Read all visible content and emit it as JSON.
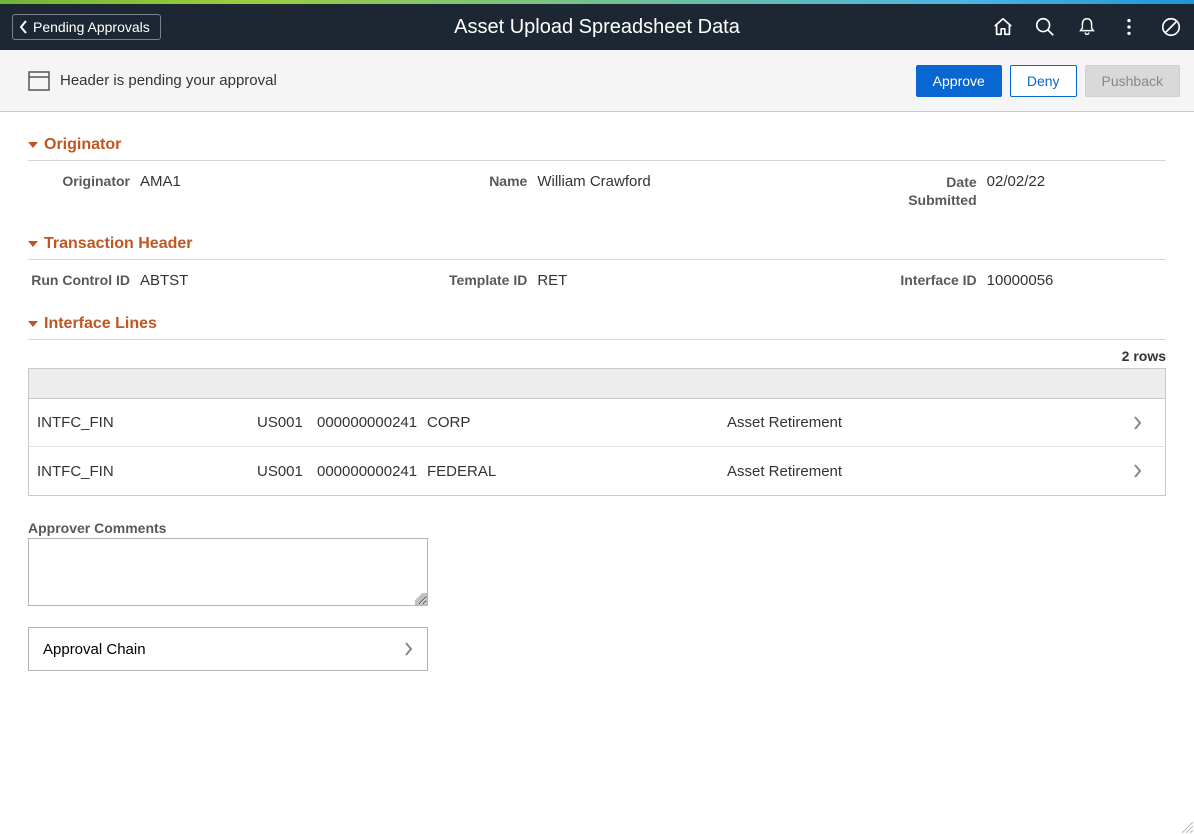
{
  "header": {
    "back_label": "Pending Approvals",
    "title": "Asset Upload Spreadsheet Data"
  },
  "sub_bar": {
    "message": "Header is pending your approval",
    "approve_label": "Approve",
    "deny_label": "Deny",
    "pushback_label": "Pushback"
  },
  "sections": {
    "originator": {
      "title": "Originator",
      "originator_label": "Originator",
      "originator_value": "AMA1",
      "name_label": "Name",
      "name_value": "William Crawford",
      "date_label": "Date Submitted",
      "date_value": "02/02/22"
    },
    "transaction_header": {
      "title": "Transaction Header",
      "run_control_label": "Run Control ID",
      "run_control_value": "ABTST",
      "template_label": "Template ID",
      "template_value": "RET",
      "interface_label": "Interface ID",
      "interface_value": "10000056"
    },
    "interface_lines": {
      "title": "Interface Lines",
      "rows_count": "2 rows",
      "rows": [
        {
          "c1": "INTFC_FIN",
          "c2": "US001",
          "c3": "000000000241",
          "c4": "CORP",
          "c5": "Asset Retirement"
        },
        {
          "c1": "INTFC_FIN",
          "c2": "US001",
          "c3": "000000000241",
          "c4": "FEDERAL",
          "c5": "Asset Retirement"
        }
      ]
    }
  },
  "comments": {
    "label": "Approver Comments",
    "value": ""
  },
  "approval_chain": {
    "label": "Approval Chain"
  }
}
